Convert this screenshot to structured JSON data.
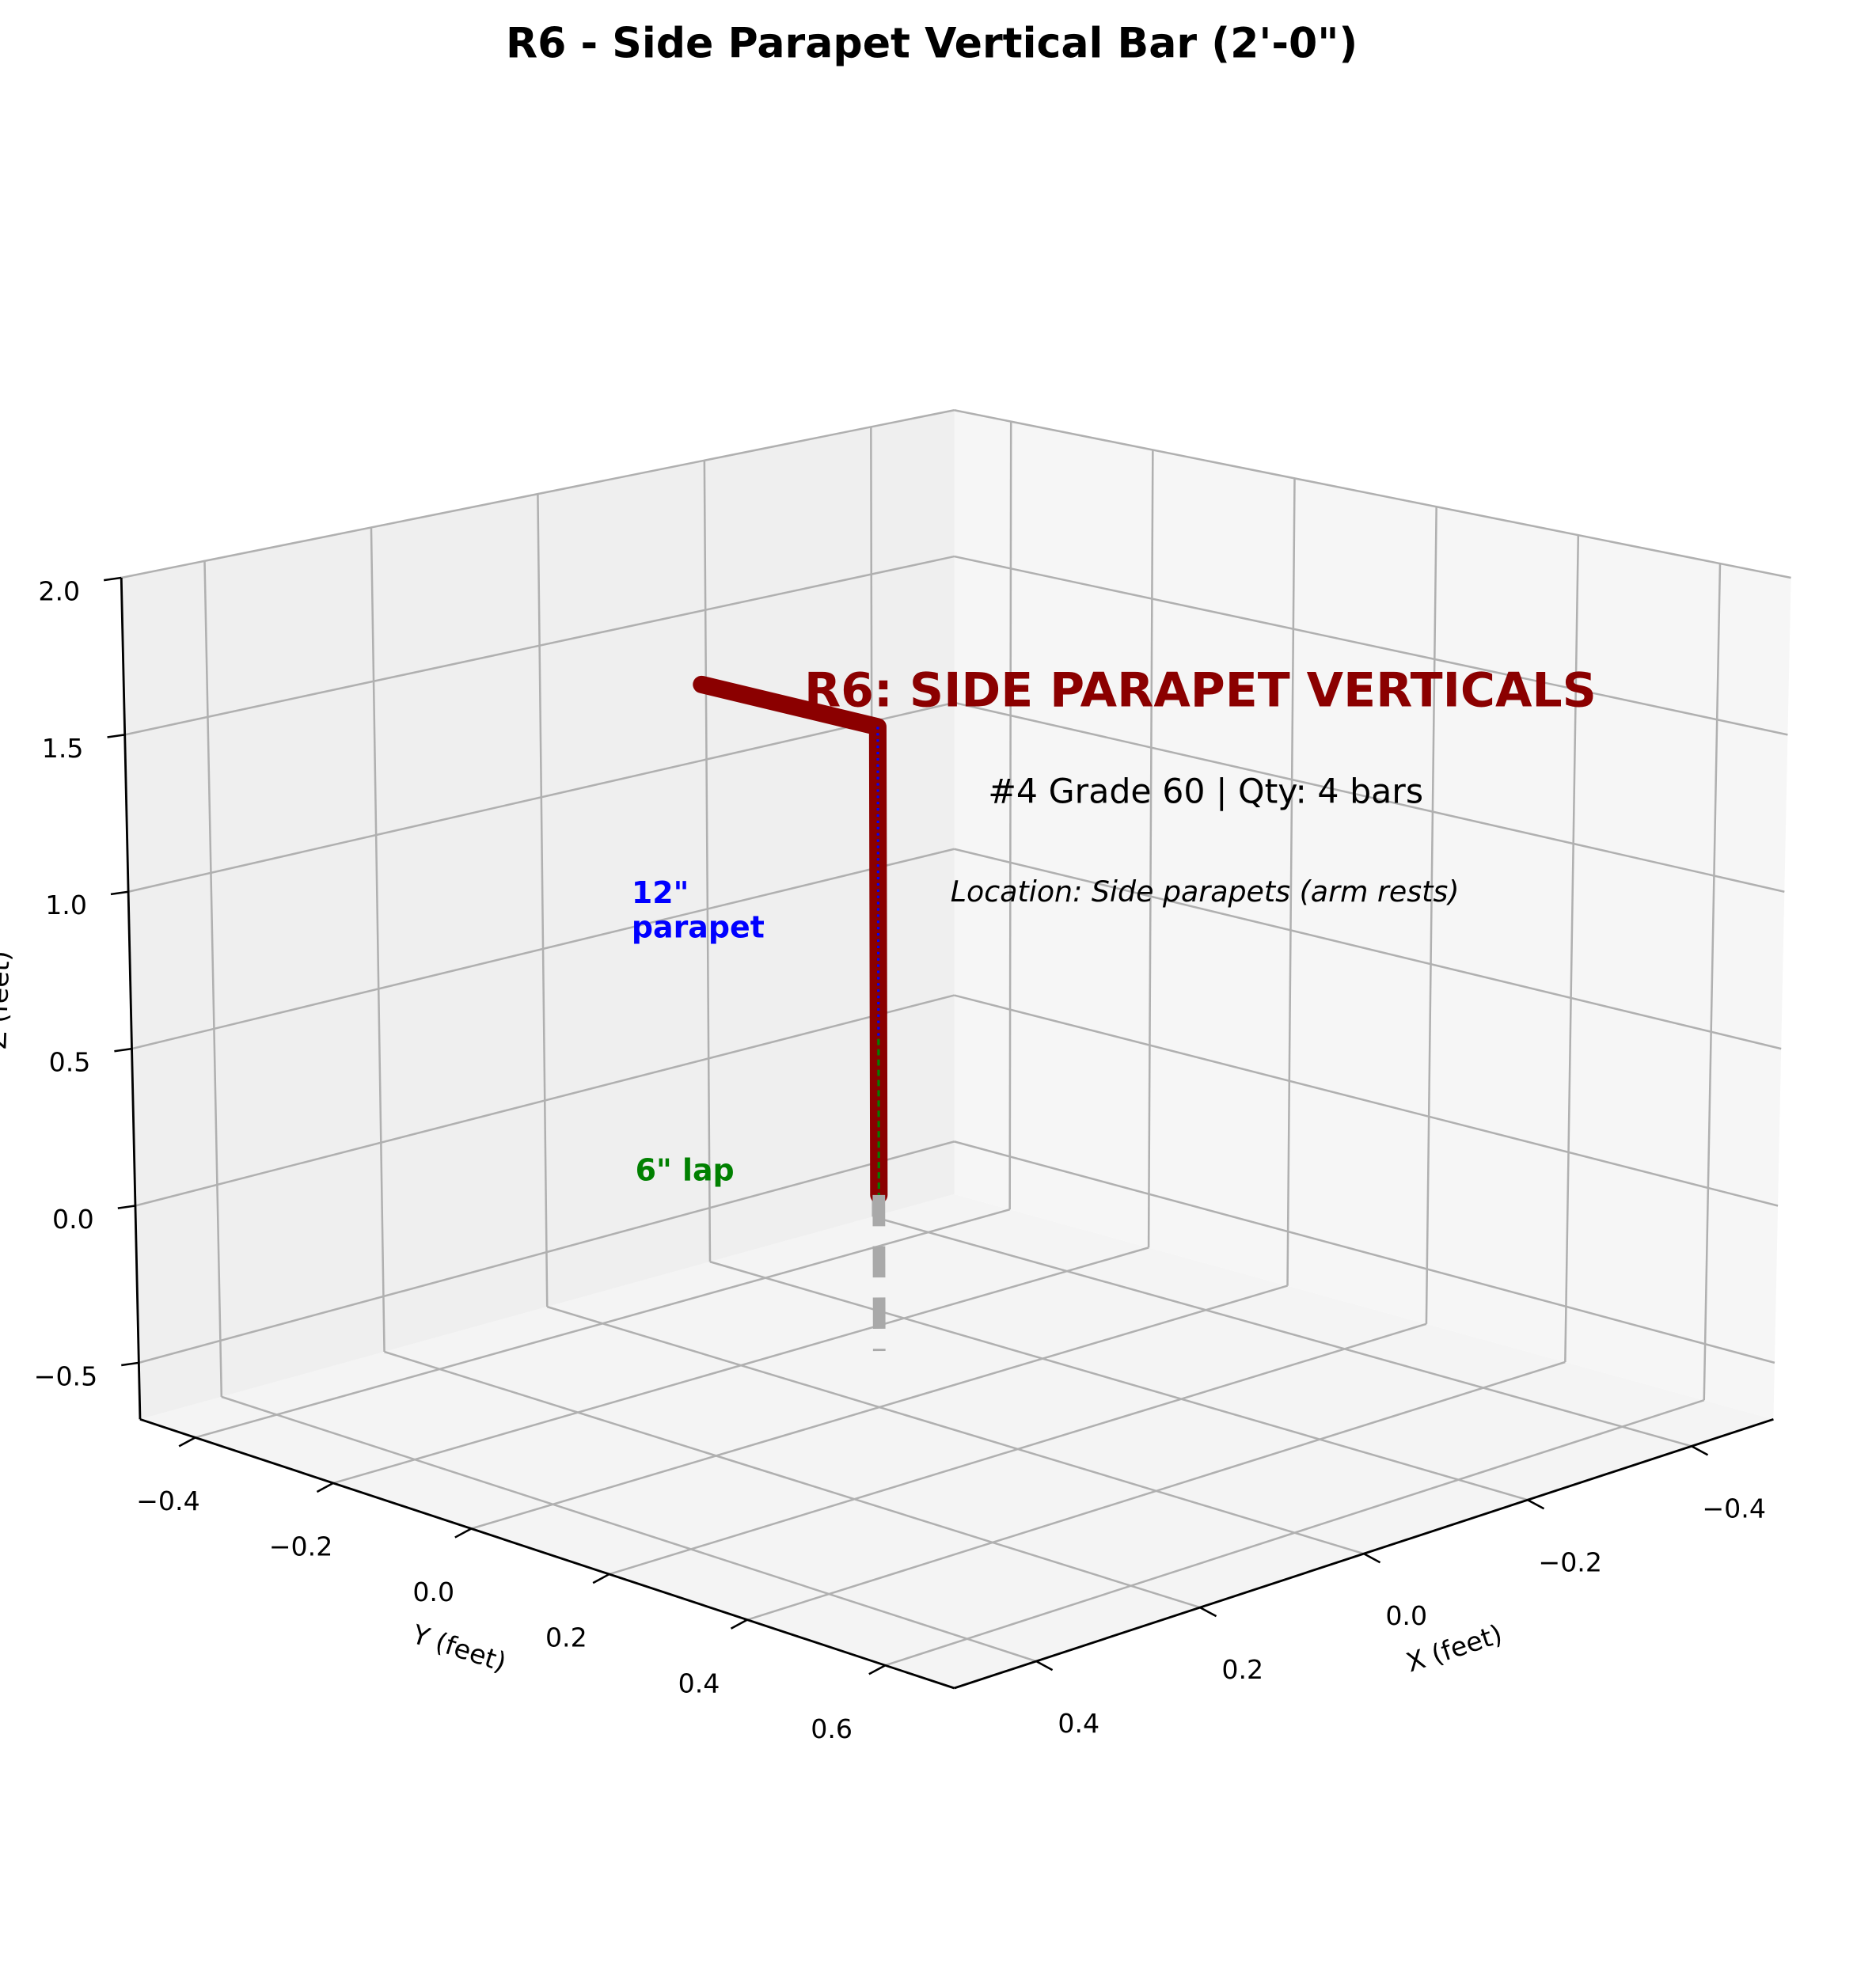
{
  "chart_data": {
    "type": "line3d",
    "title": "R6 - Side Parapet Vertical Bar (2'-0\")",
    "xlabel": "X (feet)",
    "ylabel": "Y (feet)",
    "zlabel": "Z (feet)",
    "xlim": [
      -0.5,
      0.5
    ],
    "ylim": [
      -0.48,
      0.7
    ],
    "zlim": [
      -0.68,
      2.0
    ],
    "xticks": [
      {
        "value": -0.4,
        "label": "−0.4"
      },
      {
        "value": -0.2,
        "label": "−0.2"
      },
      {
        "value": 0,
        "label": "0.0"
      },
      {
        "value": 0.2,
        "label": "0.2"
      },
      {
        "value": 0.4,
        "label": "0.4"
      }
    ],
    "yticks": [
      {
        "value": -0.4,
        "label": "−0.4"
      },
      {
        "value": -0.2,
        "label": "−0.2"
      },
      {
        "value": 0,
        "label": "0.0"
      },
      {
        "value": 0.2,
        "label": "0.2"
      },
      {
        "value": 0.4,
        "label": "0.4"
      },
      {
        "value": 0.6,
        "label": "0.6"
      }
    ],
    "zticks": [
      {
        "value": -0.5,
        "label": "−0.5"
      },
      {
        "value": 0,
        "label": "0.0"
      },
      {
        "value": 0.5,
        "label": "0.5"
      },
      {
        "value": 1,
        "label": "1.0"
      },
      {
        "value": 1.5,
        "label": "1.5"
      },
      {
        "value": 2,
        "label": "2.0"
      }
    ],
    "grid": true,
    "series": [
      {
        "color": "#8b0000",
        "linestyle": "solid",
        "linewidth": 14,
        "x": [
          0,
          0,
          0
        ],
        "y": [
          -0.25,
          0,
          0
        ],
        "z": [
          1.5,
          1.5,
          0
        ]
      },
      {
        "color": "#a9a9a9",
        "linestyle": "dashed",
        "linewidth": 10,
        "x": [
          0,
          0
        ],
        "y": [
          0,
          0
        ],
        "z": [
          0,
          -0.5
        ]
      },
      {
        "color": "#0000ff",
        "linestyle": "dotted",
        "linewidth": 2,
        "x": [
          0,
          0
        ],
        "y": [
          0,
          0
        ],
        "z": [
          1.5,
          0.5
        ]
      },
      {
        "color": "#008000",
        "linestyle": "dashed",
        "linewidth": 2,
        "x": [
          0,
          0
        ],
        "y": [
          0,
          0
        ],
        "z": [
          0.5,
          0
        ]
      }
    ],
    "annotations": [
      {
        "text": "R6: SIDE PARAPET VERTICALS",
        "color": "#8b0000"
      },
      {
        "text": "#4 Grade 60 | Qty: 4 bars",
        "color": "#000000"
      },
      {
        "text": "Location: Side parapets (arm rests)",
        "color": "#000000"
      },
      {
        "text": "12\"\nparapet",
        "color": "#0000ff"
      },
      {
        "text": "6\" lap",
        "color": "#008000"
      }
    ]
  }
}
